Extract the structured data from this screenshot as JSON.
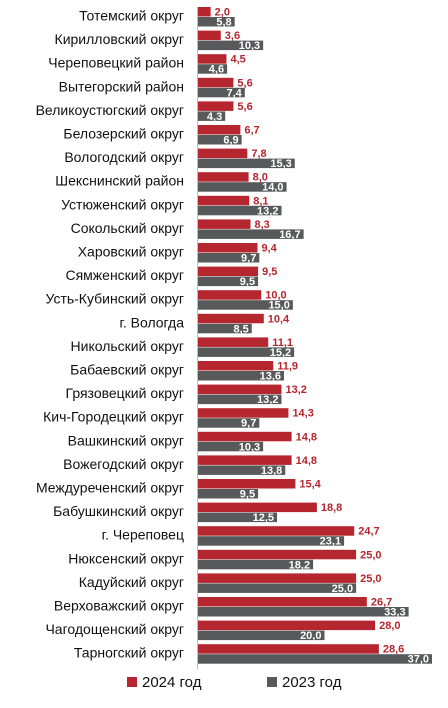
{
  "chart_data": {
    "type": "bar",
    "orientation": "horizontal",
    "categories": [
      "Тотемский округ",
      "Кирилловский округ",
      "Череповецкий район",
      "Вытегорский район",
      "Великоустюгский округ",
      "Белозерский округ",
      "Вологодский округ",
      "Шекснинский район",
      "Устюженский округ",
      "Сокольский округ",
      "Харовский округ",
      "Сямженский округ",
      "Усть-Кубинский округ",
      "г. Вологда",
      "Никольский округ",
      "Бабаевский округ",
      "Грязовецкий округ",
      "Кич-Городецкий округ",
      "Вашкинский округ",
      "Вожегодский округ",
      "Междуреченский округ",
      "Бабушкинский округ",
      "г. Череповец",
      "Нюксенский округ",
      "Кадуйский округ",
      "Верховажский округ",
      "Чагодощенский округ",
      "Тарногский округ"
    ],
    "series": [
      {
        "name": "2024 год",
        "color": "#b5262f",
        "label_color": "#b5262f",
        "values": [
          2.0,
          3.6,
          4.5,
          5.6,
          5.6,
          6.7,
          7.8,
          8.0,
          8.1,
          8.3,
          9.4,
          9.5,
          10.0,
          10.4,
          11.1,
          11.9,
          13.2,
          14.3,
          14.8,
          14.8,
          15.4,
          18.8,
          24.7,
          25.0,
          25.0,
          26.7,
          28.0,
          28.6
        ]
      },
      {
        "name": "2023 год",
        "color": "#58595b",
        "label_color": "#ffffff",
        "values": [
          5.8,
          10.3,
          4.6,
          7.4,
          4.3,
          6.9,
          15.3,
          14.0,
          13.2,
          16.7,
          9.7,
          9.5,
          15.0,
          8.5,
          15.2,
          13.6,
          13.2,
          9.7,
          10.3,
          13.8,
          9.5,
          12.5,
          23.1,
          18.2,
          25.0,
          33.3,
          20.0,
          37.0
        ]
      }
    ],
    "xlim": [
      0,
      37
    ],
    "decimal_separator": ",",
    "grid": false,
    "legend_position": "bottom"
  }
}
